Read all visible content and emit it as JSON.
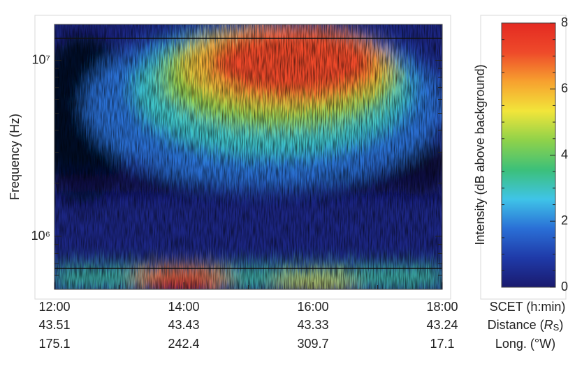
{
  "chart_data": {
    "type": "spectrogram",
    "y_label": "Frequency (Hz)",
    "log_y": true,
    "ylim": [
      500000,
      16000000
    ],
    "yticks": [
      {
        "value": 1000000,
        "label": "10⁶"
      },
      {
        "value": 10000000,
        "label": "10⁷"
      }
    ],
    "yminorticks": [
      600000,
      700000,
      800000,
      900000,
      2000000,
      3000000,
      4000000,
      5000000,
      6000000,
      7000000,
      8000000,
      9000000
    ],
    "xlim": [
      12,
      18
    ],
    "xticks": [
      {
        "value": 12,
        "label": "12:00"
      },
      {
        "value": 14,
        "label": "14:00"
      },
      {
        "value": 16,
        "label": "16:00"
      },
      {
        "value": 18,
        "label": "18:00"
      }
    ],
    "xminorticks": [
      13,
      15,
      17
    ],
    "x_row_labels": {
      "time": "SCET (h:min)",
      "distance": [
        "Distance (",
        "R",
        "S",
        ")"
      ],
      "longitude": "Long. (°W)"
    },
    "distance": [
      43.51,
      43.43,
      43.33,
      43.24
    ],
    "longitude": [
      175.1,
      242.4,
      309.7,
      17.1
    ],
    "colorbar": {
      "label": "Intensity (dB above background)",
      "lim": [
        0,
        8
      ],
      "ticks": [
        0,
        2,
        4,
        6,
        8
      ],
      "colors": [
        "#1a1a6e",
        "#1f3aa8",
        "#2a6fd6",
        "#3fc4e8",
        "#3cc07a",
        "#8fd24a",
        "#f2e53a",
        "#f7a12f",
        "#ee4a2a",
        "#e42a22"
      ]
    }
  }
}
